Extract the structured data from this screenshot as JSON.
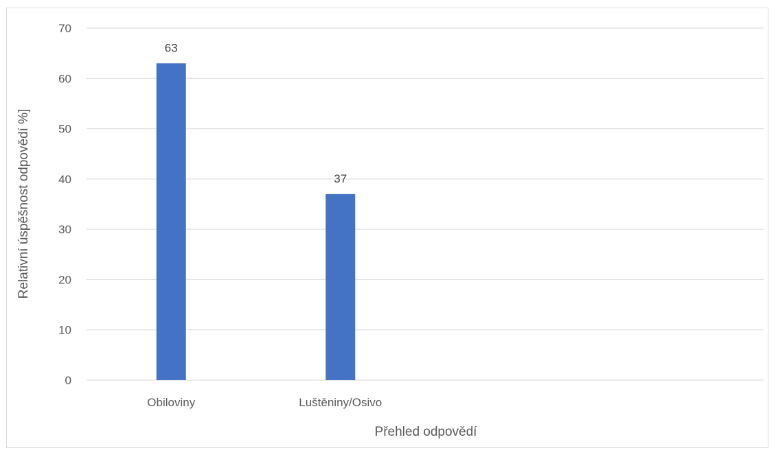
{
  "chart_data": {
    "type": "bar",
    "categories": [
      "Obiloviny",
      "Luštěniny/Osivo",
      "",
      ""
    ],
    "values": [
      63,
      37,
      null,
      null
    ],
    "data_labels": [
      "63",
      "37",
      "",
      ""
    ],
    "title": "",
    "xlabel": "Přehled odpovědí",
    "ylabel": "Relativní úspěšnost odpovědí %]",
    "ylim": [
      0,
      70
    ],
    "yticks": [
      0,
      10,
      20,
      30,
      40,
      50,
      60,
      70
    ],
    "grid": true,
    "legend": "none",
    "bar_color": "#4472C4",
    "grid_color": "#d9d9d9"
  }
}
